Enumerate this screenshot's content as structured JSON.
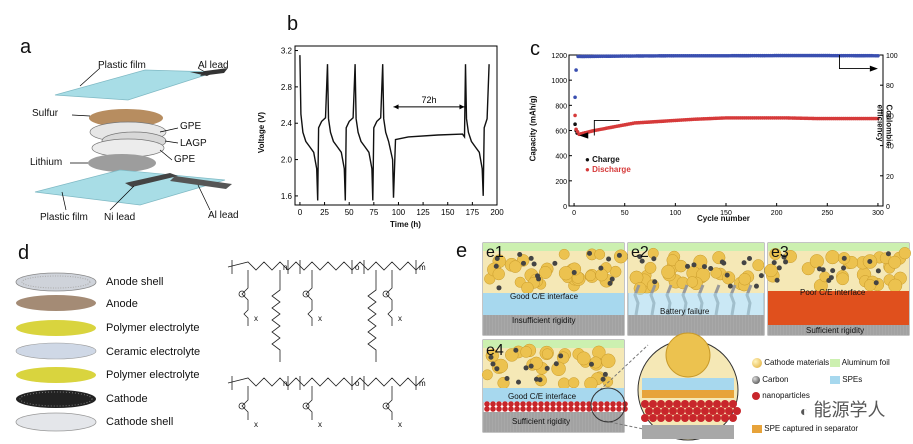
{
  "panels": {
    "a": {
      "letter": "a",
      "labels": {
        "plastic_top": "Plastic film",
        "al_top": "Al lead",
        "sulfur": "Sulfur",
        "gpe1": "GPE",
        "lagp": "LAGP",
        "gpe2": "GPE",
        "lithium": "Lithium",
        "plastic_bottom": "Plastic film",
        "ni": "Ni lead",
        "al_bottom": "Al lead"
      }
    },
    "b": {
      "letter": "b"
    },
    "c": {
      "letter": "c"
    },
    "d": {
      "letter": "d",
      "layers": [
        "Anode shell",
        "Anode",
        "Polymer electrolyte",
        "Ceramic electrolyte",
        "Polymer electrolyte",
        "Cathode",
        "Cathode shell"
      ],
      "subscripts": {
        "n": "n",
        "m": "m",
        "o": "o",
        "x": "x"
      }
    },
    "e": {
      "letter": "e",
      "sub": {
        "e1": "e1",
        "e2": "e2",
        "e3": "e3",
        "e4": "e4"
      },
      "texts": {
        "e1_top": "Good C/E interface",
        "e1_bottom": "Insufficient rigidity",
        "e2": "Battery failure",
        "e3_top": "Poor C/E interface",
        "e3_bottom": "Sufficient rigidity",
        "e4_top": "Good C/E interface",
        "e4_bottom": "Sufficient rigidity"
      },
      "legend": {
        "cathode": "Cathode materials",
        "al": "Aluminum foil",
        "carbon": "Carbon",
        "spes": "SPEs",
        "nano": "nanoparticles",
        "spe_sep": "SPE captured in separator"
      }
    }
  },
  "watermark": "能源学人",
  "chart_data": [
    {
      "type": "line",
      "id": "b",
      "xlabel": "Time (h)",
      "ylabel": "Voltage (V)",
      "xlim": [
        -5,
        200
      ],
      "ylim": [
        1.5,
        3.25
      ],
      "xticks": [
        0,
        25,
        50,
        75,
        100,
        125,
        150,
        175,
        200
      ],
      "yticks": [
        1.6,
        2.0,
        2.4,
        2.8,
        3.2
      ],
      "annotation": "72h",
      "series": [
        {
          "values": [
            [
              0,
              3.15
            ],
            [
              1,
              2.5
            ],
            [
              3,
              2.3
            ],
            [
              6,
              2.2
            ],
            [
              10,
              2.14
            ],
            [
              14,
              2.08
            ],
            [
              17,
              1.9
            ],
            [
              18,
              1.55
            ],
            [
              19,
              2.35
            ],
            [
              22,
              2.42
            ],
            [
              26,
              2.46
            ],
            [
              28,
              3.05
            ],
            [
              29,
              2.45
            ],
            [
              31,
              2.3
            ],
            [
              34,
              2.2
            ],
            [
              38,
              2.14
            ],
            [
              42,
              2.08
            ],
            [
              45,
              1.9
            ],
            [
              46,
              1.55
            ],
            [
              47,
              2.35
            ],
            [
              50,
              2.42
            ],
            [
              54,
              2.46
            ],
            [
              56,
              3.05
            ],
            [
              57,
              2.45
            ],
            [
              59,
              2.3
            ],
            [
              62,
              2.2
            ],
            [
              66,
              2.14
            ],
            [
              70,
              2.08
            ],
            [
              73,
              1.9
            ],
            [
              74,
              1.55
            ],
            [
              75,
              2.35
            ],
            [
              78,
              2.42
            ],
            [
              82,
              2.46
            ],
            [
              84,
              3.05
            ],
            [
              85,
              2.45
            ],
            [
              87,
              2.3
            ],
            [
              90,
              2.2
            ],
            [
              92,
              2.1
            ],
            [
              94,
              2.0
            ],
            [
              95,
              1.58
            ],
            [
              97,
              2.22
            ],
            [
              110,
              2.25
            ],
            [
              140,
              2.27
            ],
            [
              165,
              2.28
            ],
            [
              167,
              2.25
            ],
            [
              168,
              3.05
            ],
            [
              169,
              2.45
            ],
            [
              171,
              2.3
            ],
            [
              174,
              2.2
            ],
            [
              178,
              2.14
            ],
            [
              182,
              2.08
            ],
            [
              185,
              1.9
            ],
            [
              186,
              1.6
            ],
            [
              187,
              2.35
            ],
            [
              190,
              2.45
            ],
            [
              192,
              3.05
            ]
          ]
        }
      ]
    },
    {
      "type": "scatter",
      "id": "c",
      "xlabel": "Cycle number",
      "ylabel": "Capacity (mAh/g)",
      "y2label": "Coulombic efficiency",
      "xlim": [
        -5,
        305
      ],
      "ylim": [
        0,
        1200
      ],
      "y2lim": [
        0,
        100
      ],
      "xticks": [
        0,
        50,
        100,
        150,
        200,
        250,
        300
      ],
      "yticks": [
        0,
        200,
        400,
        600,
        800,
        1000,
        1200
      ],
      "y2ticks": [
        0,
        20,
        40,
        60,
        80,
        100
      ],
      "series": [
        {
          "name": "Charge",
          "color": "#111111",
          "values": [
            [
              1,
              650
            ],
            [
              2,
              600
            ],
            [
              3,
              580
            ]
          ]
        },
        {
          "name": "Discharge",
          "color": "#d63a3a",
          "values": [
            [
              1,
              720
            ],
            [
              2,
              610
            ],
            [
              5,
              570
            ],
            [
              20,
              600
            ],
            [
              40,
              630
            ],
            [
              60,
              660
            ],
            [
              80,
              670
            ],
            [
              100,
              680
            ],
            [
              120,
              690
            ],
            [
              150,
              700
            ],
            [
              180,
              700
            ],
            [
              210,
              700
            ],
            [
              240,
              695
            ],
            [
              270,
              695
            ],
            [
              300,
              695
            ]
          ]
        },
        {
          "name": "Coulombic efficiency",
          "color": "#3a4fb0",
          "axis": "right",
          "values": [
            [
              1,
              72
            ],
            [
              2,
              90
            ],
            [
              4,
              99
            ],
            [
              50,
              99.3
            ],
            [
              100,
              99.5
            ],
            [
              150,
              99.5
            ],
            [
              200,
              99.6
            ],
            [
              250,
              99.6
            ],
            [
              300,
              99.5
            ]
          ]
        }
      ]
    }
  ]
}
